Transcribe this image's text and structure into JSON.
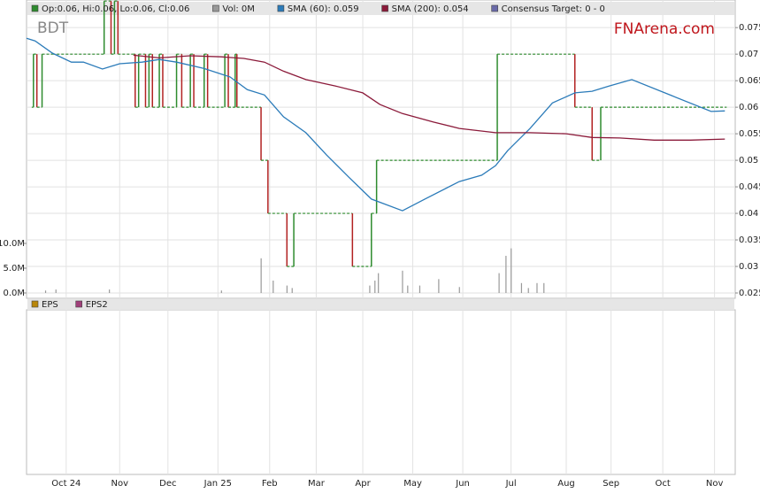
{
  "chart_data": {
    "type": "stock",
    "title": "BDT",
    "watermark": "FNArena.com",
    "xlim": [
      0,
      411
    ],
    "xticks": [
      {
        "value": 23,
        "label": "Oct 24"
      },
      {
        "value": 54,
        "label": "Nov"
      },
      {
        "value": 82,
        "label": "Dec"
      },
      {
        "value": 111,
        "label": "Jan 25"
      },
      {
        "value": 141,
        "label": "Feb"
      },
      {
        "value": 168,
        "label": "Mar"
      },
      {
        "value": 195,
        "label": "Apr"
      },
      {
        "value": 224,
        "label": "May"
      },
      {
        "value": 253,
        "label": "Jun"
      },
      {
        "value": 281,
        "label": "Jul"
      },
      {
        "value": 313,
        "label": "Aug"
      },
      {
        "value": 339,
        "label": "Sep"
      },
      {
        "value": 369,
        "label": "Oct"
      },
      {
        "value": 399,
        "label": "Nov"
      }
    ],
    "ylim": [
      0.024,
      0.0802
    ],
    "yticks": [
      0.025,
      0.03,
      0.035,
      0.04,
      0.045,
      0.05,
      0.055,
      0.06,
      0.065,
      0.07,
      0.075
    ],
    "volume_ylim": [
      0,
      10000000
    ],
    "volume_ticks": [
      {
        "value": 0,
        "label": "0.0M"
      },
      {
        "value": 5000000,
        "label": "5.0M"
      },
      {
        "value": 10000000,
        "label": "10.0M"
      }
    ],
    "grid": true,
    "series": [
      {
        "name": "Op:0.06, Hi:0.06, Lo:0.06, Cl:0.06",
        "color": "#2e8b2e",
        "down_color": "#b22222",
        "style": "step",
        "x": [
          3,
          4,
          6,
          9,
          15,
          45,
          49,
          51,
          53,
          62,
          63,
          65,
          69,
          71,
          73,
          77,
          79,
          87,
          90,
          95,
          97,
          103,
          105,
          115,
          117,
          121,
          122,
          136,
          140,
          151,
          155,
          189,
          200,
          203,
          273,
          318,
          328,
          333,
          405
        ],
        "values": [
          0.06,
          0.07,
          0.06,
          0.07,
          0.07,
          0.08,
          0.07,
          0.08,
          0.07,
          0.07,
          0.06,
          0.07,
          0.06,
          0.07,
          0.06,
          0.07,
          0.06,
          0.07,
          0.06,
          0.07,
          0.06,
          0.07,
          0.06,
          0.07,
          0.06,
          0.07,
          0.06,
          0.05,
          0.04,
          0.03,
          0.04,
          0.03,
          0.04,
          0.05,
          0.07,
          0.06,
          0.05,
          0.06,
          0.06
        ]
      },
      {
        "name": "Vol: 0M",
        "color": "#999999",
        "style": "volume",
        "x": [
          11,
          17,
          48,
          113,
          136,
          143,
          151,
          154,
          199,
          202,
          204,
          218,
          221,
          228,
          239,
          251,
          274,
          278,
          281,
          287,
          291,
          296,
          300
        ],
        "values": [
          500000,
          700000,
          700000,
          500000,
          7000000,
          2500000,
          1500000,
          1000000,
          1500000,
          2500000,
          4000000,
          4500000,
          1500000,
          1500000,
          2800000,
          1200000,
          4000000,
          7500000,
          9000000,
          2000000,
          1000000,
          2000000,
          2000000
        ]
      },
      {
        "name": "SMA (60): 0.059",
        "color": "#2b7bb9",
        "style": "line",
        "x": [
          0,
          5,
          15,
          26,
          33,
          44,
          54,
          67,
          77,
          87,
          103,
          118,
          128,
          138,
          149,
          162,
          174,
          187,
          200,
          218,
          231,
          251,
          264,
          272,
          279,
          292,
          305,
          318,
          328,
          338,
          351,
          374,
          397,
          405
        ],
        "values": [
          0.073,
          0.0725,
          0.0702,
          0.0685,
          0.0685,
          0.0672,
          0.0682,
          0.0685,
          0.069,
          0.0685,
          0.0673,
          0.0657,
          0.0633,
          0.0623,
          0.0582,
          0.0552,
          0.051,
          0.0468,
          0.0427,
          0.0405,
          0.0427,
          0.046,
          0.0472,
          0.049,
          0.0518,
          0.056,
          0.0608,
          0.0627,
          0.063,
          0.064,
          0.0652,
          0.0622,
          0.0592,
          0.0593
        ]
      },
      {
        "name": "SMA (200): 0.054",
        "color": "#8b1a3a",
        "style": "line",
        "x": [
          62,
          77,
          95,
          113,
          126,
          138,
          149,
          162,
          179,
          195,
          205,
          218,
          236,
          251,
          272,
          292,
          313,
          328,
          344,
          364,
          385,
          405
        ],
        "values": [
          0.0698,
          0.0693,
          0.0697,
          0.0695,
          0.0692,
          0.0685,
          0.0668,
          0.0652,
          0.064,
          0.0627,
          0.0605,
          0.0588,
          0.0572,
          0.056,
          0.0552,
          0.0552,
          0.055,
          0.0543,
          0.0542,
          0.0538,
          0.0538,
          0.054
        ]
      },
      {
        "name": "Consensus Target: 0 - 0",
        "color": "#6a6aa8",
        "style": "none"
      }
    ],
    "eps_panel": {
      "legend": [
        {
          "name": "EPS",
          "color": "#b8860b"
        },
        {
          "name": "EPS2",
          "color": "#a0407a"
        }
      ]
    }
  }
}
